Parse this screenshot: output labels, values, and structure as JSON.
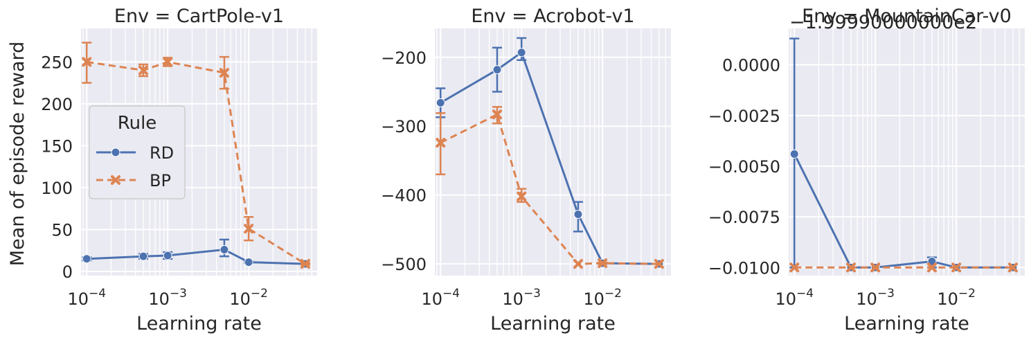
{
  "colors": {
    "RD": "#4c72b0",
    "BP": "#dd8452",
    "panel_bg": "#eaeaf2",
    "grid": "#ffffff",
    "text": "#262626"
  },
  "figure": {
    "ylabel": "Mean of episode reward",
    "xlabel": "Learning rate"
  },
  "legend": {
    "title": "Rule",
    "entries": [
      {
        "name": "RD",
        "marker": "circle",
        "line": "solid"
      },
      {
        "name": "BP",
        "marker": "x",
        "line": "dashed"
      }
    ],
    "placement": "center-left of first panel"
  },
  "chart_data": [
    {
      "type": "line",
      "title": "Env = CartPole-v1",
      "xscale": "log",
      "xlim": [
        8.5e-05,
        0.07
      ],
      "ylim": [
        -5,
        290
      ],
      "xticks": [
        {
          "value": 0.0001,
          "base": "10",
          "exp": "−4"
        },
        {
          "value": 0.001,
          "base": "10",
          "exp": "−3"
        },
        {
          "value": 0.01,
          "base": "10",
          "exp": "−2"
        }
      ],
      "yticks": [
        {
          "value": 0,
          "label": "0"
        },
        {
          "value": 50,
          "label": "50"
        },
        {
          "value": 100,
          "label": "100"
        },
        {
          "value": 150,
          "label": "150"
        },
        {
          "value": 200,
          "label": "200"
        },
        {
          "value": 250,
          "label": "250"
        }
      ],
      "series": [
        {
          "name": "RD",
          "x": [
            0.0001,
            0.0005,
            0.001,
            0.005,
            0.01,
            0.05
          ],
          "y": [
            15,
            18,
            19,
            26,
            11,
            9
          ],
          "err_low": [
            13,
            15,
            15,
            18,
            10,
            8
          ],
          "err_high": [
            17,
            21,
            23,
            38,
            12,
            10
          ]
        },
        {
          "name": "BP",
          "x": [
            0.0001,
            0.0005,
            0.001,
            0.005,
            0.01,
            0.05
          ],
          "y": [
            250,
            240,
            250,
            237,
            51,
            9
          ],
          "err_low": [
            225,
            233,
            245,
            218,
            37,
            8
          ],
          "err_high": [
            273,
            247,
            255,
            256,
            65,
            10
          ]
        }
      ]
    },
    {
      "type": "line",
      "title": "Env = Acrobot-v1",
      "xscale": "log",
      "xlim": [
        8.5e-05,
        0.07
      ],
      "ylim": [
        -517,
        -158
      ],
      "xticks": [
        {
          "value": 0.0001,
          "base": "10",
          "exp": "−4"
        },
        {
          "value": 0.001,
          "base": "10",
          "exp": "−3"
        },
        {
          "value": 0.01,
          "base": "10",
          "exp": "−2"
        }
      ],
      "yticks": [
        {
          "value": -500,
          "label": "−500"
        },
        {
          "value": -400,
          "label": "−400"
        },
        {
          "value": -300,
          "label": "−300"
        },
        {
          "value": -200,
          "label": "−200"
        }
      ],
      "series": [
        {
          "name": "RD",
          "x": [
            0.0001,
            0.0005,
            0.001,
            0.005,
            0.01,
            0.05
          ],
          "y": [
            -266,
            -218,
            -193,
            -428,
            -499,
            -500
          ],
          "err_low": [
            -287,
            -250,
            -204,
            -453,
            -500,
            -500
          ],
          "err_high": [
            -245,
            -186,
            -172,
            -410,
            -498,
            -500
          ]
        },
        {
          "name": "BP",
          "x": [
            0.0001,
            0.0005,
            0.001,
            0.005,
            0.01,
            0.05
          ],
          "y": [
            -324,
            -283,
            -402,
            -500,
            -499,
            -500
          ],
          "err_low": [
            -370,
            -296,
            -410,
            -500,
            -500,
            -500
          ],
          "err_high": [
            -281,
            -272,
            -391,
            -500,
            -498,
            -500
          ]
        }
      ]
    },
    {
      "type": "line",
      "title": "Env = MountainCar-v0",
      "offset_text": "−1.99990000000e2",
      "xscale": "log",
      "xlim": [
        8.5e-05,
        0.07
      ],
      "ylim": [
        -0.0104,
        0.0018
      ],
      "xticks": [
        {
          "value": 0.0001,
          "base": "10",
          "exp": "−4"
        },
        {
          "value": 0.001,
          "base": "10",
          "exp": "−3"
        },
        {
          "value": 0.01,
          "base": "10",
          "exp": "−2"
        }
      ],
      "yticks": [
        {
          "value": 0.0,
          "label": "0.0000"
        },
        {
          "value": -0.0025,
          "label": "−0.0025"
        },
        {
          "value": -0.005,
          "label": "−0.0050"
        },
        {
          "value": -0.0075,
          "label": "−0.0075"
        },
        {
          "value": -0.01,
          "label": "−0.0100"
        }
      ],
      "series": [
        {
          "name": "RD",
          "x": [
            0.0001,
            0.0005,
            0.001,
            0.005,
            0.01,
            0.05
          ],
          "y": [
            -0.0044,
            -0.01,
            -0.01,
            -0.0097,
            -0.01,
            -0.01
          ],
          "err_low": [
            -0.01,
            -0.01,
            -0.01,
            -0.01,
            -0.01,
            -0.01
          ],
          "err_high": [
            0.0013,
            -0.01,
            -0.01,
            -0.0095,
            -0.01,
            -0.01
          ]
        },
        {
          "name": "BP",
          "x": [
            0.0001,
            0.0005,
            0.001,
            0.005,
            0.01,
            0.05
          ],
          "y": [
            -0.01,
            -0.01,
            -0.01,
            -0.01,
            -0.01,
            -0.01
          ],
          "err_low": [
            -0.01,
            -0.01,
            -0.01,
            -0.01,
            -0.01,
            -0.01
          ],
          "err_high": [
            -0.01,
            -0.01,
            -0.01,
            -0.01,
            -0.01,
            -0.01
          ]
        }
      ]
    }
  ]
}
